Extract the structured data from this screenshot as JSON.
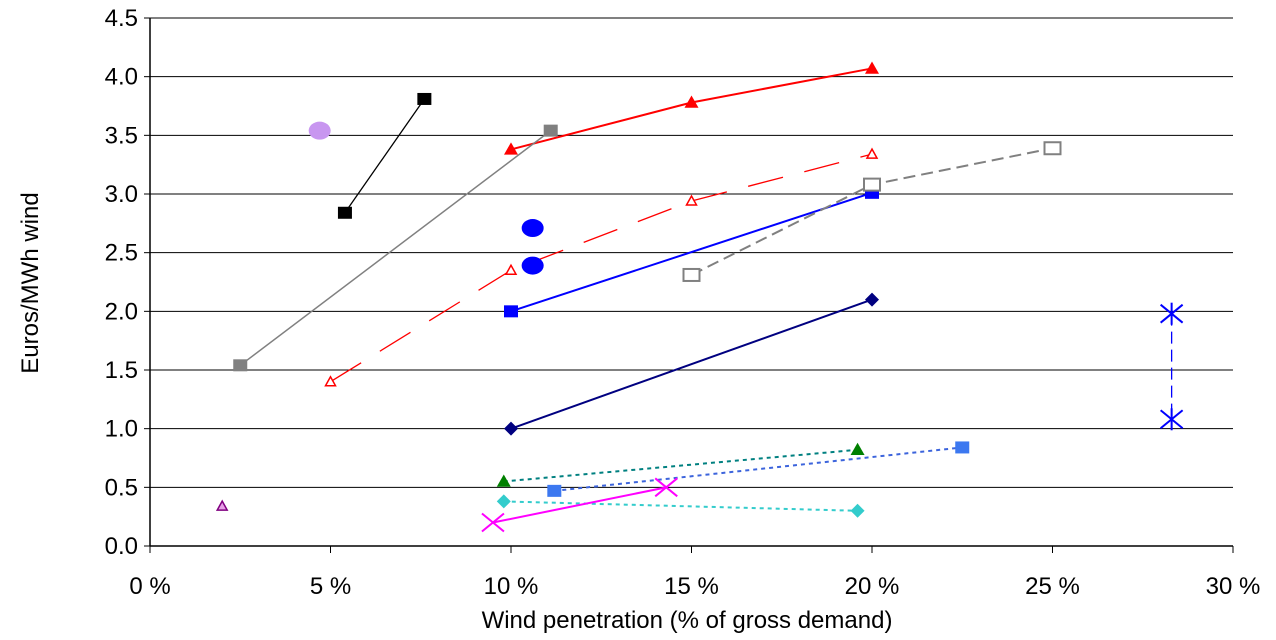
{
  "chart_data": {
    "type": "scatter",
    "xlabel": "Wind penetration (% of gross demand)",
    "ylabel": "Euros/MWh wind",
    "xlim": [
      0,
      30
    ],
    "ylim": [
      0,
      4.5
    ],
    "x_ticks": [
      0,
      5,
      10,
      15,
      20,
      25,
      30
    ],
    "x_tick_labels": [
      "0 %",
      "5 %",
      "10 %",
      "15 %",
      "20 %",
      "25 %",
      "30 %"
    ],
    "y_ticks": [
      0,
      0.5,
      1.0,
      1.5,
      2.0,
      2.5,
      3.0,
      3.5,
      4.0,
      4.5
    ],
    "y_tick_labels": [
      "0.0",
      "0.5",
      "1.0",
      "1.5",
      "2.0",
      "2.5",
      "3.0",
      "3.5",
      "4.0",
      "4.5"
    ],
    "grid": "horizontal",
    "legend": "none",
    "series": [
      {
        "color": "#ff0000",
        "marker": "triangle-filled",
        "line": "solid",
        "line_width": 2,
        "points": [
          [
            10,
            3.38
          ],
          [
            15,
            3.78
          ],
          [
            20,
            4.07
          ]
        ]
      },
      {
        "color": "#ff0000",
        "marker": "triangle-open",
        "line": "longdash",
        "line_width": 1.3,
        "points": [
          [
            5,
            1.4
          ],
          [
            10,
            2.35
          ],
          [
            15,
            2.94
          ],
          [
            20,
            3.34
          ]
        ]
      },
      {
        "color": "#808080",
        "marker": "square-filled",
        "line": "solid",
        "line_width": 1.5,
        "points": [
          [
            2.5,
            1.54
          ],
          [
            11.1,
            3.54
          ]
        ]
      },
      {
        "color": "#000000",
        "marker": "square-filled",
        "line": "solid",
        "line_width": 1.3,
        "points": [
          [
            5.4,
            2.84
          ],
          [
            7.6,
            3.81
          ]
        ]
      },
      {
        "color": "#c896f0",
        "marker": "circle-filled",
        "line": "none",
        "points": [
          [
            4.7,
            3.54
          ]
        ]
      },
      {
        "color": "#0000ff",
        "marker": "circle-filled",
        "line": "none",
        "points": [
          [
            10.6,
            2.71
          ],
          [
            10.6,
            2.39
          ]
        ]
      },
      {
        "color": "#0000ff",
        "marker": "square-filled",
        "line": "solid",
        "line_width": 2,
        "points": [
          [
            10,
            2.0
          ],
          [
            20,
            3.01
          ]
        ]
      },
      {
        "color": "#808080",
        "marker": "square-open",
        "line": "dash",
        "line_width": 2,
        "points": [
          [
            15,
            2.31
          ],
          [
            20,
            3.08
          ],
          [
            25,
            3.39
          ]
        ]
      },
      {
        "color": "#000080",
        "marker": "diamond-filled",
        "line": "solid",
        "line_width": 2,
        "points": [
          [
            10,
            1.0
          ],
          [
            20,
            2.1
          ]
        ]
      },
      {
        "color": "#0000ff",
        "marker": "star",
        "line": "dash",
        "line_width": 1.3,
        "points": [
          [
            28.3,
            1.98
          ],
          [
            28.3,
            1.08
          ]
        ]
      },
      {
        "color": "#008000",
        "marker": "triangle-filled",
        "line": "dot",
        "line_width": 2,
        "connect_color": "#008080",
        "points": [
          [
            9.8,
            0.55
          ],
          [
            19.6,
            0.82
          ]
        ]
      },
      {
        "color": "#3c78f0",
        "marker": "square-filled",
        "line": "dot",
        "line_width": 2,
        "connect_color": "#3c64dc",
        "points": [
          [
            11.2,
            0.47
          ],
          [
            22.5,
            0.84
          ]
        ]
      },
      {
        "color": "#33cccc",
        "marker": "diamond-filled",
        "line": "dot",
        "line_width": 2,
        "points": [
          [
            9.8,
            0.38
          ],
          [
            19.6,
            0.3
          ]
        ]
      },
      {
        "color": "#ff00ff",
        "marker": "x",
        "line": "solid",
        "line_width": 2,
        "points": [
          [
            9.5,
            0.2
          ],
          [
            14.3,
            0.5
          ]
        ]
      },
      {
        "color": "#800080",
        "marker": "triangle-open",
        "line": "none",
        "fill": "#e6a0e6",
        "points": [
          [
            2.0,
            0.34
          ]
        ]
      }
    ]
  }
}
